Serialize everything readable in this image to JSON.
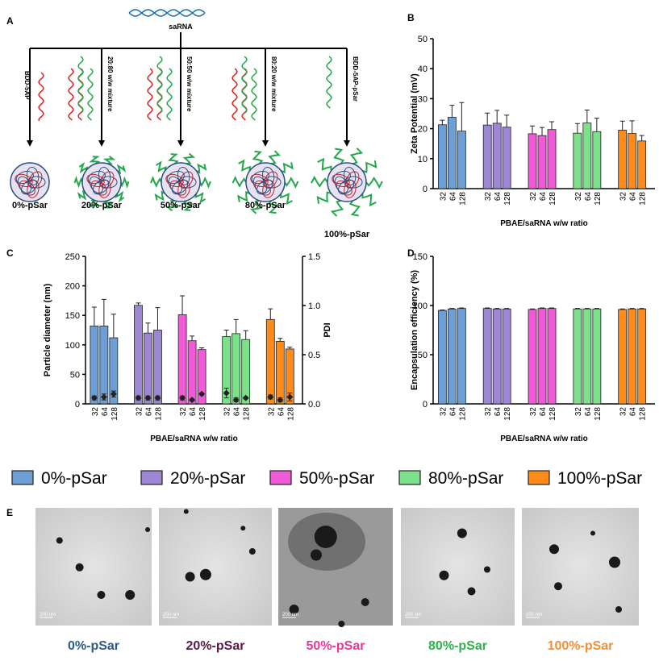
{
  "panels": [
    "A",
    "B",
    "C",
    "D",
    "E"
  ],
  "diagram": {
    "source": "saRNA",
    "inputs": [
      "BDD-5AP",
      "20:80 w/w mixture",
      "50:50 w/w mixture",
      "80:20 w/w mixture",
      "BDD-5AP-pSar"
    ],
    "products": [
      "0%-pSar",
      "20%-pSar",
      "50%-pSar",
      "80%-pSar",
      "100%-pSar"
    ]
  },
  "chart_data": [
    {
      "type": "bar",
      "y_label": "Zeta Potential  (mV)",
      "x_label": "PBAE/saRNA w/w ratio",
      "categories": [
        "32",
        "64",
        "128"
      ],
      "ylim": [
        0,
        50
      ],
      "yticks": [
        0,
        10,
        20,
        30,
        40,
        50
      ],
      "series": [
        {
          "name": "0%-pSar",
          "color": "#6d9ed4",
          "values": [
            21.3,
            23.8,
            19.2
          ],
          "errors": [
            1.5,
            4,
            9.5
          ]
        },
        {
          "name": "20%-pSar",
          "color": "#9d87d4",
          "values": [
            21.2,
            21.8,
            20.5
          ],
          "errors": [
            4,
            4.3,
            4
          ]
        },
        {
          "name": "50%-pSar",
          "color": "#f05ad7",
          "values": [
            18.3,
            17.7,
            19.7
          ],
          "errors": [
            2.6,
            2.7,
            2.6
          ]
        },
        {
          "name": "80%-pSar",
          "color": "#7de08a",
          "values": [
            18.5,
            21.9,
            19
          ],
          "errors": [
            3.2,
            4.3,
            4.5
          ]
        },
        {
          "name": "100%-pSar",
          "color": "#ff8c1a",
          "values": [
            19.5,
            18.4,
            15.9
          ],
          "errors": [
            3,
            4.2,
            1.8
          ]
        }
      ]
    },
    {
      "type": "bar",
      "y_label": "Particle diameter (nm)",
      "y2_label": "PDI",
      "x_label": "PBAE/saRNA w/w ratio",
      "categories": [
        "32",
        "64",
        "128"
      ],
      "ylim": [
        0,
        250
      ],
      "yticks": [
        0,
        50,
        100,
        150,
        200,
        250
      ],
      "y2lim": [
        0,
        1.5
      ],
      "y2ticks": [
        {
          "value": 0,
          "label": "0.0"
        },
        0.5,
        {
          "value": 1,
          "label": "1.0"
        },
        1.5
      ],
      "series": [
        {
          "name": "0%-pSar",
          "color": "#6d9ed4",
          "values": [
            132,
            132,
            112
          ],
          "errors": [
            32,
            45,
            40
          ],
          "pdi": [
            0.06,
            0.07,
            0.1
          ],
          "pdi_errors": [
            0.02,
            0.03,
            0.03
          ]
        },
        {
          "name": "20%-pSar",
          "color": "#9d87d4",
          "values": [
            167,
            120,
            125
          ],
          "errors": [
            4,
            17,
            38
          ],
          "pdi": [
            0.06,
            0.06,
            0.06
          ],
          "pdi_errors": [
            0.02,
            0.02,
            0.02
          ]
        },
        {
          "name": "50%-pSar",
          "color": "#f05ad7",
          "values": [
            151,
            107,
            92
          ],
          "errors": [
            32,
            8,
            3
          ],
          "pdi": [
            0.06,
            0.04,
            0.1
          ],
          "pdi_errors": [
            0.02,
            0.01,
            0.01
          ]
        },
        {
          "name": "80%-pSar",
          "color": "#7de08a",
          "values": [
            114,
            119,
            109
          ],
          "errors": [
            11,
            24,
            15
          ],
          "pdi": [
            0.11,
            0.04,
            0.06
          ],
          "pdi_errors": [
            0.05,
            0.02,
            0.01
          ]
        },
        {
          "name": "100%-pSar",
          "color": "#ff8c1a",
          "values": [
            143,
            106,
            93
          ],
          "errors": [
            18,
            5,
            3
          ],
          "pdi": [
            0.07,
            0.04,
            0.07
          ],
          "pdi_errors": [
            0.02,
            0.02,
            0.04
          ]
        }
      ]
    },
    {
      "type": "bar",
      "y_label": "Encapsulation efficiency (%)",
      "x_label": "PBAE/saRNA w/w ratio",
      "categories": [
        "32",
        "64",
        "128"
      ],
      "ylim": [
        0,
        150
      ],
      "yticks": [
        0,
        50,
        100,
        150
      ],
      "series": [
        {
          "name": "0%-pSar",
          "color": "#6d9ed4",
          "values": [
            95,
            96.5,
            97
          ],
          "errors": [
            0.5,
            0.5,
            0.5
          ]
        },
        {
          "name": "20%-pSar",
          "color": "#9d87d4",
          "values": [
            97,
            96.5,
            96.5
          ],
          "errors": [
            0.5,
            0.5,
            0.5
          ]
        },
        {
          "name": "50%-pSar",
          "color": "#f05ad7",
          "values": [
            96,
            97,
            97
          ],
          "errors": [
            0.5,
            0.5,
            0.5
          ]
        },
        {
          "name": "80%-pSar",
          "color": "#7de08a",
          "values": [
            96.5,
            96.5,
            96.5
          ],
          "errors": [
            0.5,
            0.5,
            0.5
          ]
        },
        {
          "name": "100%-pSar",
          "color": "#ff8c1a",
          "values": [
            96,
            96.5,
            96.5
          ],
          "errors": [
            0.5,
            0.5,
            0.5
          ]
        }
      ]
    }
  ],
  "micrographs": [
    {
      "label": "0%-pSar",
      "color": "#2e5a8c",
      "scale_bar": "200 nm"
    },
    {
      "label": "20%-pSar",
      "color": "#5a1a4a",
      "scale_bar": "200 nm"
    },
    {
      "label": "50%-pSar",
      "color": "#e8389a",
      "scale_bar": "200 nm"
    },
    {
      "label": "80%-pSar",
      "color": "#2db34a",
      "scale_bar": "200 nm"
    },
    {
      "label": "100%-pSar",
      "color": "#f0903a",
      "scale_bar": "200 nm"
    }
  ]
}
